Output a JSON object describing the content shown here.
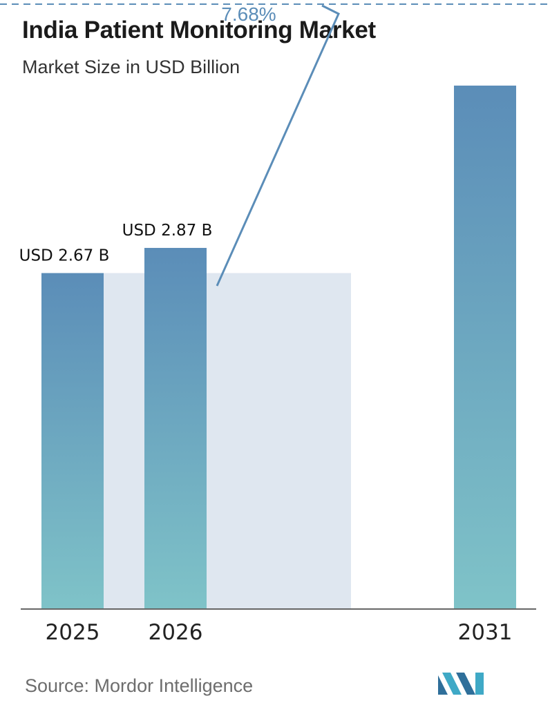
{
  "header": {
    "title": "India Patient Monitoring Market",
    "subtitle": "Market Size in USD Billion"
  },
  "footer": {
    "source": "Source:  Mordor Intelligence"
  },
  "chart_data": {
    "type": "bar",
    "title": "India Patient Monitoring Market",
    "subtitle": "Market Size in USD Billion",
    "categories": [
      "2025",
      "2026",
      "2031"
    ],
    "values": [
      2.67,
      2.87,
      4.16
    ],
    "data_labels": [
      "USD 2.67 B",
      "USD 2.87 B",
      ""
    ],
    "cagr_label": "7.68%",
    "ylim": [
      0,
      4.5
    ],
    "grid": false,
    "legend": "none",
    "colors": {
      "bar_top": "#5b8db8",
      "bar_bottom": "#7fc3c8",
      "band": "#dfe7f0",
      "cagr": "#5b8db8",
      "axis": "#666666"
    }
  }
}
